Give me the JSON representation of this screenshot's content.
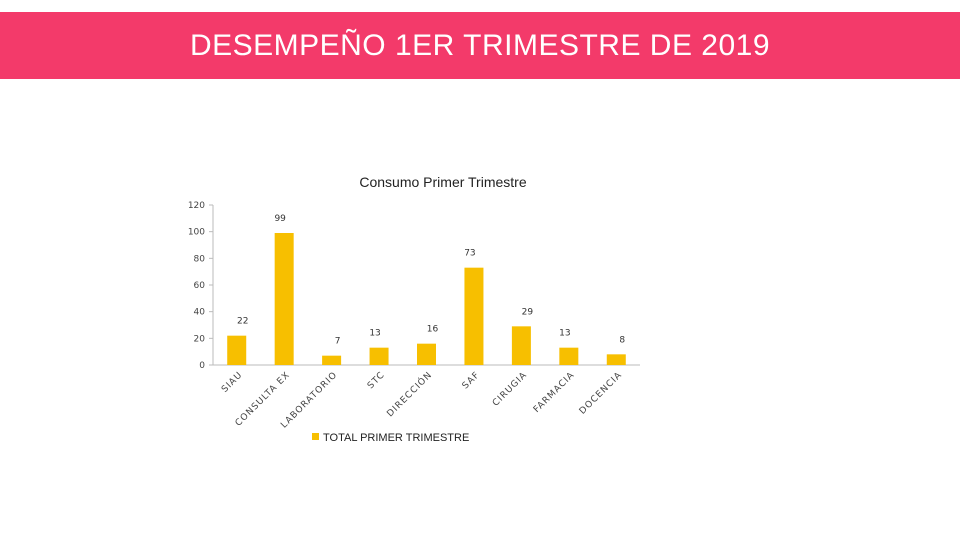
{
  "header": {
    "title": "DESEMPEÑO 1ER TRIMESTRE DE 2019"
  },
  "colors": {
    "banner": "#f33a6a",
    "bar": "#f7bf00"
  },
  "chart_data": {
    "type": "bar",
    "title": "Consumo Primer Trimestre",
    "xlabel": "",
    "ylabel": "",
    "ylim": [
      0,
      120
    ],
    "yticks": [
      0,
      20,
      40,
      60,
      80,
      100,
      120
    ],
    "grid": false,
    "legend_position": "bottom",
    "categories": [
      "SIAU",
      "CONSULTA EX",
      "LABORATORIO",
      "STC",
      "DIRECCIÓN",
      "SAF",
      "CIRUGIA",
      "FARMACIA",
      "DOCENCIA"
    ],
    "series": [
      {
        "name": "TOTAL PRIMER TRIMESTRE",
        "values": [
          22,
          99,
          7,
          13,
          16,
          73,
          29,
          13,
          8
        ]
      }
    ]
  }
}
